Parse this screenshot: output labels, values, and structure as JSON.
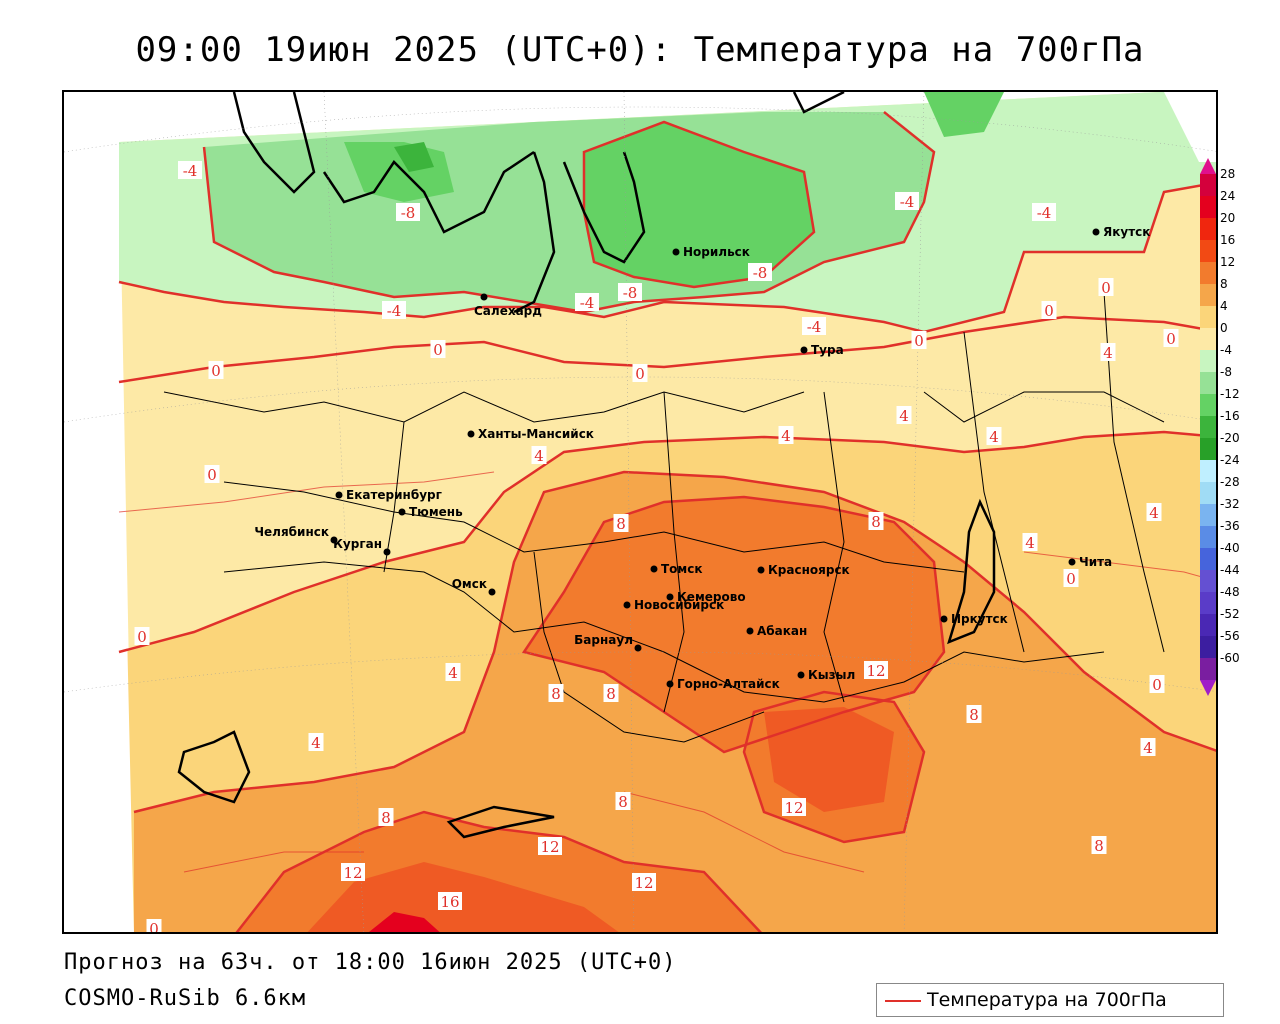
{
  "title": "09:00 19июн 2025 (UTC+0): Температура на 700гПа",
  "footer": {
    "forecast": "Прогноз на 63ч. от 18:00 16июн 2025 (UTC+0)",
    "model": "COSMO-RuSib 6.6км"
  },
  "legend": {
    "label": "Температура на 700гПа",
    "line_color": "#e0302a"
  },
  "colors": {
    "isoline": "#e0302a",
    "boundary": "#000000",
    "band_minus12": "#3cb43c",
    "band_minus8": "#64d264",
    "band_minus4": "#96e196",
    "band_0": "#c8f5c0",
    "band_4": "#fde9a6",
    "band_8": "#fbd57a",
    "band_12": "#f5a64a",
    "band_16": "#f27b2d",
    "band_20": "#ef5a24"
  },
  "scale": {
    "ticks": [
      "28",
      "24",
      "20",
      "16",
      "12",
      "8",
      "4",
      "0",
      "-4",
      "-8",
      "-12",
      "-16",
      "-20",
      "-24",
      "-28",
      "-32",
      "-36",
      "-40",
      "-44",
      "-48",
      "-52",
      "-56",
      "-60"
    ],
    "colors": [
      "#d4003c",
      "#e4001e",
      "#f0260e",
      "#f24a14",
      "#f27b2d",
      "#f5a64a",
      "#fbd57a",
      "#fde9a6",
      "#c8f5c0",
      "#96e196",
      "#64d264",
      "#3cb43c",
      "#28a028",
      "#bfefff",
      "#a0dcf5",
      "#7ab4f0",
      "#5a8ce6",
      "#4664dc",
      "#6450d2",
      "#5a3cc8",
      "#4a28b4",
      "#3c1ea0",
      "#7a1ea0"
    ]
  },
  "cities": [
    {
      "name": "Якутск"
    },
    {
      "name": "Норильск"
    },
    {
      "name": "Салехард"
    },
    {
      "name": "Тура"
    },
    {
      "name": "Ханты-Мансийск"
    },
    {
      "name": "Екатеринбург"
    },
    {
      "name": "Тюмень"
    },
    {
      "name": "Челябинск"
    },
    {
      "name": "Курган"
    },
    {
      "name": "Омск"
    },
    {
      "name": "Новосибирск"
    },
    {
      "name": "Томск"
    },
    {
      "name": "Кемерово"
    },
    {
      "name": "Красноярск"
    },
    {
      "name": "Абакан"
    },
    {
      "name": "Барнаул"
    },
    {
      "name": "Горно-Алтайск"
    },
    {
      "name": "Кызыл"
    },
    {
      "name": "Иркутск"
    },
    {
      "name": "Чита"
    }
  ],
  "isolabels": [
    "-4",
    "-8",
    "-4",
    "-4",
    "-8",
    "-4",
    "-4",
    "-4",
    "0",
    "0",
    "0",
    "0",
    "0",
    "0",
    "0",
    "0",
    "0",
    "0",
    "4",
    "4",
    "4",
    "4",
    "4",
    "4",
    "4",
    "4",
    "8",
    "8",
    "8",
    "8",
    "8",
    "8",
    "8",
    "8",
    "12",
    "12",
    "12",
    "12",
    "12",
    "16",
    "0",
    "4",
    "-8",
    "4",
    "0"
  ]
}
